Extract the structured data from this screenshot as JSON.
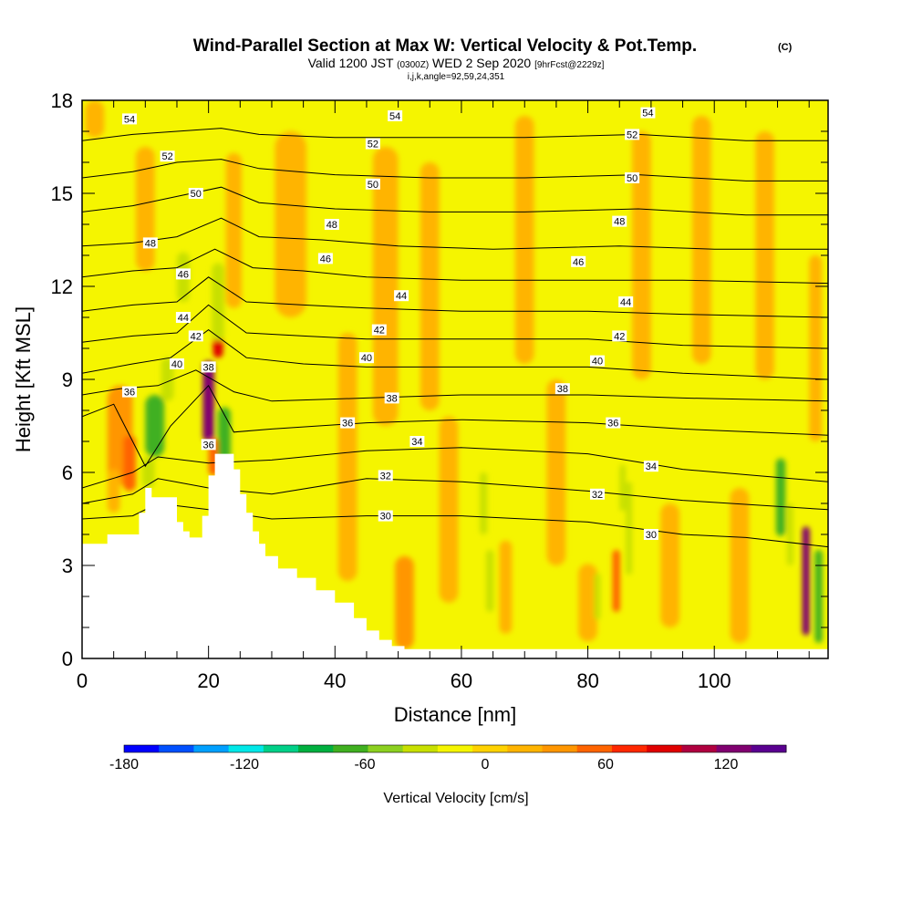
{
  "header": {
    "title": "Wind-Parallel Section at Max W: Vertical Velocity & Pot.Temp.",
    "title_mark": "(C)",
    "valid_prefix": "Valid 1200 JST",
    "valid_utc": "(0300Z)",
    "valid_date": "WED 2 Sep 2020",
    "forecast": "[9hrFcst@2229z]",
    "params": "i,j,k,angle=92,59,24,351"
  },
  "chart_data": {
    "type": "heatmap",
    "xlabel": "Distance [nm]",
    "ylabel": "Height [Kft MSL]",
    "xlim": [
      0,
      118
    ],
    "ylim": [
      0,
      18
    ],
    "x_ticks": [
      0,
      20,
      40,
      60,
      80,
      100
    ],
    "x_tick_labels": [
      "0",
      "20",
      "40",
      "60",
      "80",
      "100"
    ],
    "y_ticks": [
      0,
      3,
      6,
      9,
      12,
      15,
      18
    ],
    "y_tick_labels": [
      "0",
      "3",
      "6",
      "9",
      "12",
      "15",
      "18"
    ],
    "background_value_color": "#f5f500",
    "terrain": [
      [
        0,
        3.7
      ],
      [
        4,
        3.7
      ],
      [
        4,
        4.0
      ],
      [
        9,
        4.0
      ],
      [
        9,
        4.7
      ],
      [
        10,
        4.7
      ],
      [
        10,
        5.5
      ],
      [
        11,
        5.5
      ],
      [
        11,
        5.2
      ],
      [
        15,
        5.2
      ],
      [
        15,
        4.4
      ],
      [
        16,
        4.4
      ],
      [
        16,
        4.1
      ],
      [
        17,
        4.1
      ],
      [
        17,
        3.9
      ],
      [
        19,
        3.9
      ],
      [
        19,
        4.6
      ],
      [
        20,
        4.6
      ],
      [
        20,
        5.9
      ],
      [
        21,
        5.9
      ],
      [
        21,
        6.6
      ],
      [
        24,
        6.6
      ],
      [
        24,
        6.1
      ],
      [
        25,
        6.1
      ],
      [
        25,
        5.3
      ],
      [
        26,
        5.3
      ],
      [
        26,
        4.7
      ],
      [
        27,
        4.7
      ],
      [
        27,
        4.1
      ],
      [
        28,
        4.1
      ],
      [
        28,
        3.7
      ],
      [
        29,
        3.7
      ],
      [
        29,
        3.3
      ],
      [
        31,
        3.3
      ],
      [
        31,
        2.9
      ],
      [
        34,
        2.9
      ],
      [
        34,
        2.6
      ],
      [
        37,
        2.6
      ],
      [
        37,
        2.2
      ],
      [
        40,
        2.2
      ],
      [
        40,
        1.8
      ],
      [
        43,
        1.8
      ],
      [
        43,
        1.3
      ],
      [
        45,
        1.3
      ],
      [
        45,
        0.9
      ],
      [
        47,
        0.9
      ],
      [
        47,
        0.6
      ],
      [
        49,
        0.6
      ],
      [
        49,
        0.4
      ],
      [
        51,
        0.4
      ],
      [
        51,
        0.3
      ],
      [
        118,
        0.3
      ]
    ],
    "velocity_cells": [
      {
        "x": 2,
        "z": 17.4,
        "w": 3,
        "h": 1.2,
        "v": 20
      },
      {
        "x": 10,
        "z": 14.5,
        "w": 3,
        "h": 4,
        "v": 20
      },
      {
        "x": 6,
        "z": 7.2,
        "w": 4,
        "h": 3.2,
        "v": 30
      },
      {
        "x": 5,
        "z": 5.4,
        "w": 2,
        "h": 1.4,
        "v": 20
      },
      {
        "x": 7.5,
        "z": 6.3,
        "w": 2,
        "h": 1.8,
        "v": 60
      },
      {
        "x": 11.5,
        "z": 7.5,
        "w": 3,
        "h": 2.0,
        "v": -60
      },
      {
        "x": 10.5,
        "z": 6.0,
        "w": 2,
        "h": 1.0,
        "v": -40
      },
      {
        "x": 13.5,
        "z": 9.0,
        "w": 2,
        "h": 1.4,
        "v": -40
      },
      {
        "x": 16,
        "z": 12.3,
        "w": 2,
        "h": 1.6,
        "v": -40
      },
      {
        "x": 20,
        "z": 8.3,
        "w": 1.8,
        "h": 2.6,
        "v": 120
      },
      {
        "x": 21.5,
        "z": 10.5,
        "w": 1.6,
        "h": 1.6,
        "v": 90
      },
      {
        "x": 20.8,
        "z": 6.5,
        "w": 1.6,
        "h": 1.2,
        "v": 60
      },
      {
        "x": 22.5,
        "z": 7.2,
        "w": 2,
        "h": 1.8,
        "v": -60
      },
      {
        "x": 21.5,
        "z": 11.5,
        "w": 2,
        "h": 2.5,
        "v": -40
      },
      {
        "x": 24,
        "z": 13.8,
        "w": 2.5,
        "h": 5,
        "v": 20
      },
      {
        "x": 33,
        "z": 14.0,
        "w": 5,
        "h": 6,
        "v": 20
      },
      {
        "x": 42,
        "z": 6.5,
        "w": 3,
        "h": 8,
        "v": 25
      },
      {
        "x": 48,
        "z": 12.0,
        "w": 4,
        "h": 9,
        "v": 20
      },
      {
        "x": 51,
        "z": 1.8,
        "w": 3,
        "h": 3,
        "v": 40
      },
      {
        "x": 55,
        "z": 12.0,
        "w": 3,
        "h": 8,
        "v": 20
      },
      {
        "x": 58,
        "z": 4.8,
        "w": 3,
        "h": 6,
        "v": 20
      },
      {
        "x": 63.5,
        "z": 5.0,
        "w": 1.2,
        "h": 2,
        "v": -40
      },
      {
        "x": 64.5,
        "z": 2.5,
        "w": 1.2,
        "h": 2,
        "v": -40
      },
      {
        "x": 67,
        "z": 2.3,
        "w": 2,
        "h": 3,
        "v": 20
      },
      {
        "x": 70,
        "z": 13.5,
        "w": 3,
        "h": 8,
        "v": 20
      },
      {
        "x": 75,
        "z": 6.0,
        "w": 3,
        "h": 6,
        "v": 20
      },
      {
        "x": 80,
        "z": 1.8,
        "w": 3,
        "h": 2.5,
        "v": 25
      },
      {
        "x": 81.5,
        "z": 2.0,
        "w": 1,
        "h": 1.5,
        "v": -40
      },
      {
        "x": 84.5,
        "z": 2.5,
        "w": 1.2,
        "h": 2,
        "v": 60
      },
      {
        "x": 85.5,
        "z": 5.5,
        "w": 1,
        "h": 1.5,
        "v": -40
      },
      {
        "x": 86.5,
        "z": 4.2,
        "w": 1,
        "h": 3,
        "v": -40
      },
      {
        "x": 88.5,
        "z": 13.0,
        "w": 3,
        "h": 8,
        "v": 20
      },
      {
        "x": 93,
        "z": 3.0,
        "w": 3,
        "h": 4,
        "v": 20
      },
      {
        "x": 98,
        "z": 13.5,
        "w": 3,
        "h": 8,
        "v": 20
      },
      {
        "x": 104,
        "z": 3.0,
        "w": 3,
        "h": 5,
        "v": 20
      },
      {
        "x": 108,
        "z": 13.0,
        "w": 3,
        "h": 8,
        "v": 20
      },
      {
        "x": 110.5,
        "z": 5.2,
        "w": 1.5,
        "h": 2.5,
        "v": -60
      },
      {
        "x": 112,
        "z": 4.0,
        "w": 1,
        "h": 2,
        "v": -40
      },
      {
        "x": 114.5,
        "z": 2.5,
        "w": 1.2,
        "h": 3.5,
        "v": 120
      },
      {
        "x": 116.5,
        "z": 2.0,
        "w": 1.2,
        "h": 3,
        "v": -60
      },
      {
        "x": 116,
        "z": 10.0,
        "w": 2,
        "h": 6,
        "v": 20
      }
    ],
    "isentropes": [
      {
        "name": "30",
        "points": [
          [
            0,
            4.5
          ],
          [
            8,
            4.6
          ],
          [
            12,
            5.0
          ],
          [
            20,
            4.8
          ],
          [
            30,
            4.5
          ],
          [
            45,
            4.6
          ],
          [
            60,
            4.6
          ],
          [
            80,
            4.4
          ],
          [
            95,
            4.0
          ],
          [
            105,
            3.9
          ],
          [
            118,
            3.6
          ]
        ]
      },
      {
        "name": "32",
        "points": [
          [
            0,
            5.0
          ],
          [
            8,
            5.3
          ],
          [
            12,
            5.8
          ],
          [
            20,
            5.5
          ],
          [
            30,
            5.3
          ],
          [
            45,
            5.8
          ],
          [
            60,
            5.7
          ],
          [
            80,
            5.4
          ],
          [
            95,
            5.1
          ],
          [
            118,
            4.8
          ]
        ]
      },
      {
        "name": "34",
        "points": [
          [
            0,
            5.5
          ],
          [
            8,
            6.0
          ],
          [
            12,
            6.5
          ],
          [
            20,
            6.3
          ],
          [
            30,
            6.4
          ],
          [
            45,
            6.7
          ],
          [
            60,
            6.8
          ],
          [
            80,
            6.6
          ],
          [
            95,
            6.1
          ],
          [
            118,
            5.7
          ]
        ]
      },
      {
        "name": "36",
        "points": [
          [
            0,
            7.8
          ],
          [
            5,
            8.2
          ],
          [
            10,
            6.2
          ],
          [
            14,
            7.5
          ],
          [
            20,
            8.8
          ],
          [
            24,
            7.3
          ],
          [
            30,
            7.4
          ],
          [
            45,
            7.6
          ],
          [
            60,
            7.7
          ],
          [
            80,
            7.6
          ],
          [
            95,
            7.4
          ],
          [
            118,
            7.2
          ]
        ]
      },
      {
        "name": "38",
        "points": [
          [
            0,
            8.5
          ],
          [
            6,
            8.7
          ],
          [
            12,
            8.8
          ],
          [
            18,
            9.3
          ],
          [
            24,
            8.6
          ],
          [
            30,
            8.3
          ],
          [
            45,
            8.4
          ],
          [
            60,
            8.5
          ],
          [
            80,
            8.5
          ],
          [
            95,
            8.4
          ],
          [
            118,
            8.3
          ]
        ]
      },
      {
        "name": "40",
        "points": [
          [
            0,
            9.2
          ],
          [
            8,
            9.5
          ],
          [
            14,
            9.7
          ],
          [
            20,
            10.6
          ],
          [
            26,
            9.7
          ],
          [
            35,
            9.5
          ],
          [
            45,
            9.4
          ],
          [
            60,
            9.4
          ],
          [
            80,
            9.4
          ],
          [
            95,
            9.2
          ],
          [
            118,
            9.0
          ]
        ]
      },
      {
        "name": "42",
        "points": [
          [
            0,
            10.2
          ],
          [
            8,
            10.4
          ],
          [
            15,
            10.5
          ],
          [
            20,
            11.4
          ],
          [
            26,
            10.5
          ],
          [
            35,
            10.4
          ],
          [
            45,
            10.3
          ],
          [
            60,
            10.3
          ],
          [
            80,
            10.3
          ],
          [
            95,
            10.1
          ],
          [
            118,
            10.0
          ]
        ]
      },
      {
        "name": "44",
        "points": [
          [
            0,
            11.2
          ],
          [
            8,
            11.4
          ],
          [
            15,
            11.5
          ],
          [
            20,
            12.3
          ],
          [
            26,
            11.5
          ],
          [
            35,
            11.4
          ],
          [
            45,
            11.3
          ],
          [
            60,
            11.2
          ],
          [
            80,
            11.2
          ],
          [
            95,
            11.1
          ],
          [
            118,
            11.0
          ]
        ]
      },
      {
        "name": "46",
        "points": [
          [
            0,
            12.3
          ],
          [
            8,
            12.5
          ],
          [
            15,
            12.6
          ],
          [
            21,
            13.2
          ],
          [
            27,
            12.6
          ],
          [
            35,
            12.5
          ],
          [
            45,
            12.3
          ],
          [
            60,
            12.2
          ],
          [
            80,
            12.2
          ],
          [
            95,
            12.2
          ],
          [
            118,
            12.1
          ]
        ]
      },
      {
        "name": "48",
        "points": [
          [
            0,
            13.3
          ],
          [
            8,
            13.4
          ],
          [
            15,
            13.6
          ],
          [
            22,
            14.2
          ],
          [
            28,
            13.6
          ],
          [
            38,
            13.5
          ],
          [
            50,
            13.3
          ],
          [
            65,
            13.2
          ],
          [
            85,
            13.3
          ],
          [
            100,
            13.2
          ],
          [
            118,
            13.2
          ]
        ]
      },
      {
        "name": "50",
        "points": [
          [
            0,
            14.4
          ],
          [
            8,
            14.6
          ],
          [
            15,
            14.9
          ],
          [
            22,
            15.2
          ],
          [
            28,
            14.7
          ],
          [
            40,
            14.5
          ],
          [
            55,
            14.4
          ],
          [
            70,
            14.4
          ],
          [
            88,
            14.5
          ],
          [
            105,
            14.3
          ],
          [
            118,
            14.3
          ]
        ]
      },
      {
        "name": "52",
        "points": [
          [
            0,
            15.5
          ],
          [
            8,
            15.7
          ],
          [
            15,
            16.0
          ],
          [
            22,
            16.1
          ],
          [
            28,
            15.8
          ],
          [
            40,
            15.6
          ],
          [
            55,
            15.5
          ],
          [
            70,
            15.5
          ],
          [
            88,
            15.6
          ],
          [
            105,
            15.4
          ],
          [
            118,
            15.4
          ]
        ]
      },
      {
        "name": "54",
        "points": [
          [
            0,
            16.7
          ],
          [
            8,
            16.9
          ],
          [
            15,
            17.0
          ],
          [
            22,
            17.1
          ],
          [
            28,
            16.9
          ],
          [
            40,
            16.8
          ],
          [
            55,
            16.8
          ],
          [
            70,
            16.8
          ],
          [
            88,
            16.9
          ],
          [
            105,
            16.7
          ],
          [
            118,
            16.7
          ]
        ]
      }
    ],
    "contour_labels": [
      {
        "text": "54",
        "x": 7.5,
        "z": 17.4
      },
      {
        "text": "54",
        "x": 49.5,
        "z": 17.5
      },
      {
        "text": "54",
        "x": 89.5,
        "z": 17.6
      },
      {
        "text": "52",
        "x": 13.5,
        "z": 16.2
      },
      {
        "text": "52",
        "x": 46,
        "z": 16.6
      },
      {
        "text": "52",
        "x": 87,
        "z": 16.9
      },
      {
        "text": "50",
        "x": 18,
        "z": 15.0
      },
      {
        "text": "50",
        "x": 46,
        "z": 15.3
      },
      {
        "text": "50",
        "x": 87,
        "z": 15.5
      },
      {
        "text": "48",
        "x": 10.8,
        "z": 13.4
      },
      {
        "text": "48",
        "x": 39.5,
        "z": 14.0
      },
      {
        "text": "48",
        "x": 85,
        "z": 14.1
      },
      {
        "text": "46",
        "x": 16,
        "z": 12.4
      },
      {
        "text": "46",
        "x": 38.5,
        "z": 12.9
      },
      {
        "text": "46",
        "x": 78.5,
        "z": 12.8
      },
      {
        "text": "44",
        "x": 16,
        "z": 11.0
      },
      {
        "text": "44",
        "x": 50.5,
        "z": 11.7
      },
      {
        "text": "44",
        "x": 86,
        "z": 11.5
      },
      {
        "text": "42",
        "x": 18,
        "z": 10.4
      },
      {
        "text": "42",
        "x": 47,
        "z": 10.6
      },
      {
        "text": "42",
        "x": 85,
        "z": 10.4
      },
      {
        "text": "40",
        "x": 15,
        "z": 9.5
      },
      {
        "text": "40",
        "x": 45,
        "z": 9.7
      },
      {
        "text": "40",
        "x": 81.5,
        "z": 9.6
      },
      {
        "text": "38",
        "x": 20,
        "z": 9.4
      },
      {
        "text": "38",
        "x": 49,
        "z": 8.4
      },
      {
        "text": "38",
        "x": 76,
        "z": 8.7
      },
      {
        "text": "36",
        "x": 7.5,
        "z": 8.6
      },
      {
        "text": "36",
        "x": 42,
        "z": 7.6
      },
      {
        "text": "36",
        "x": 84,
        "z": 7.6
      },
      {
        "text": "36",
        "x": 20,
        "z": 6.9
      },
      {
        "text": "34",
        "x": 53,
        "z": 7.0
      },
      {
        "text": "34",
        "x": 90,
        "z": 6.2
      },
      {
        "text": "32",
        "x": 48,
        "z": 5.9
      },
      {
        "text": "32",
        "x": 81.5,
        "z": 5.3
      },
      {
        "text": "30",
        "x": 48,
        "z": 4.6
      },
      {
        "text": "30",
        "x": 90,
        "z": 4.0
      }
    ],
    "colorbar": {
      "label": "Vertical Velocity [cm/s]",
      "tick_labels": [
        "-180",
        "-120",
        "-60",
        "0",
        "60",
        "120"
      ],
      "tick_values": [
        -180,
        -120,
        -60,
        0,
        60,
        120
      ],
      "range": [
        -180,
        150
      ],
      "colors": [
        "#0000ff",
        "#0050ff",
        "#00a0ff",
        "#00e8e8",
        "#00d088",
        "#00b040",
        "#40b020",
        "#8cd020",
        "#c8e000",
        "#f5f500",
        "#ffd200",
        "#ffb400",
        "#ff9600",
        "#ff6400",
        "#ff2800",
        "#e00000",
        "#b00040",
        "#800070",
        "#5a0090"
      ]
    }
  }
}
